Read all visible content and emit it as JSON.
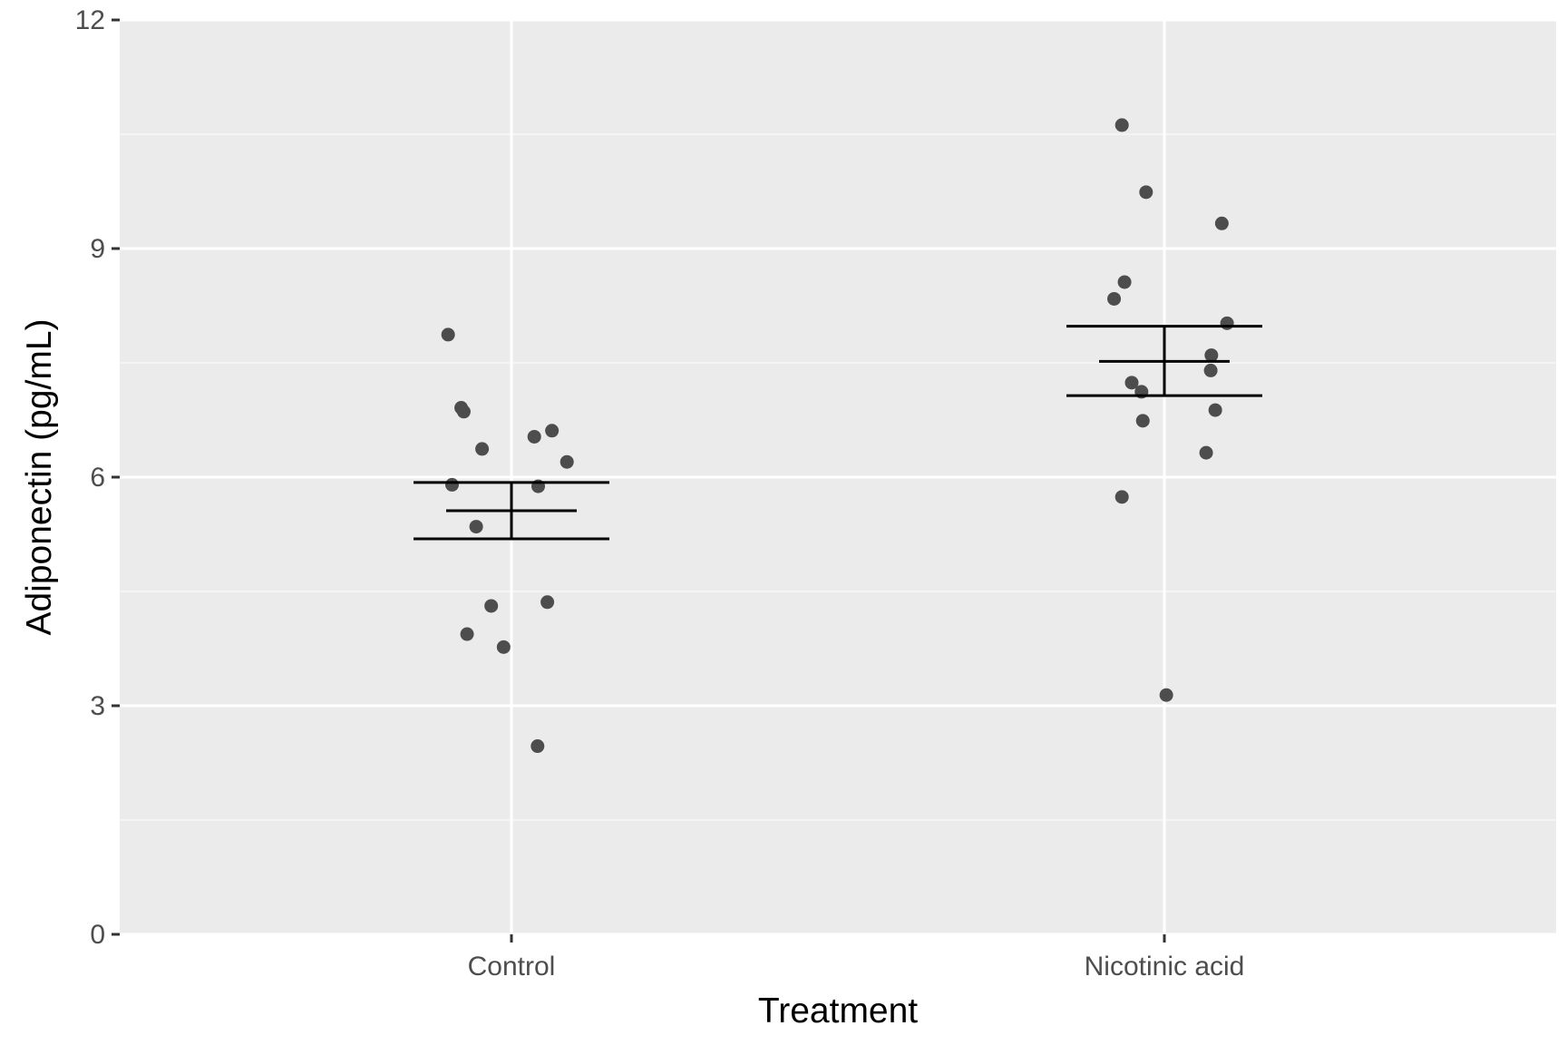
{
  "chart_data": {
    "type": "scatter",
    "title": "",
    "xlabel": "Treatment",
    "ylabel": "Adiponectin (pg/mL)",
    "ylim": [
      0,
      12
    ],
    "y_ticks": [
      0,
      3,
      6,
      9,
      12
    ],
    "y_minor_ticks": [
      1.5,
      4.5,
      7.5,
      10.5
    ],
    "categories": [
      "Control",
      "Nicotinic acid"
    ],
    "grid": true,
    "legend": "none",
    "series": [
      {
        "category": "Control",
        "points": [
          {
            "jitter": -0.097,
            "y": 7.87
          },
          {
            "jitter": -0.077,
            "y": 6.91
          },
          {
            "jitter": -0.073,
            "y": 6.86
          },
          {
            "jitter": -0.045,
            "y": 6.37
          },
          {
            "jitter": 0.035,
            "y": 6.53
          },
          {
            "jitter": 0.062,
            "y": 6.61
          },
          {
            "jitter": 0.085,
            "y": 6.2
          },
          {
            "jitter": -0.091,
            "y": 5.9
          },
          {
            "jitter": 0.041,
            "y": 5.88
          },
          {
            "jitter": -0.054,
            "y": 5.35
          },
          {
            "jitter": -0.031,
            "y": 4.31
          },
          {
            "jitter": 0.055,
            "y": 4.36
          },
          {
            "jitter": -0.068,
            "y": 3.94
          },
          {
            "jitter": -0.012,
            "y": 3.77
          },
          {
            "jitter": 0.04,
            "y": 2.47
          }
        ],
        "mean": 5.56,
        "error_low": 5.19,
        "error_high": 5.93
      },
      {
        "category": "Nicotinic acid",
        "points": [
          {
            "jitter": -0.065,
            "y": 10.62
          },
          {
            "jitter": -0.028,
            "y": 9.74
          },
          {
            "jitter": 0.088,
            "y": 9.33
          },
          {
            "jitter": -0.061,
            "y": 8.56
          },
          {
            "jitter": -0.077,
            "y": 8.34
          },
          {
            "jitter": 0.096,
            "y": 8.02
          },
          {
            "jitter": 0.072,
            "y": 7.6
          },
          {
            "jitter": 0.071,
            "y": 7.4
          },
          {
            "jitter": -0.05,
            "y": 7.24
          },
          {
            "jitter": -0.035,
            "y": 7.12
          },
          {
            "jitter": 0.078,
            "y": 6.88
          },
          {
            "jitter": -0.033,
            "y": 6.74
          },
          {
            "jitter": 0.064,
            "y": 6.32
          },
          {
            "jitter": -0.065,
            "y": 5.74
          },
          {
            "jitter": 0.003,
            "y": 3.14
          }
        ],
        "mean": 7.52,
        "error_low": 7.07,
        "error_high": 7.98
      }
    ],
    "colors": {
      "panel_background": "#ebebeb",
      "grid_major": "#ffffff",
      "grid_minor": "#f7f7f7",
      "points": "#4d4d4d",
      "error_bars": "#000000",
      "tick_marks": "#333333"
    }
  }
}
